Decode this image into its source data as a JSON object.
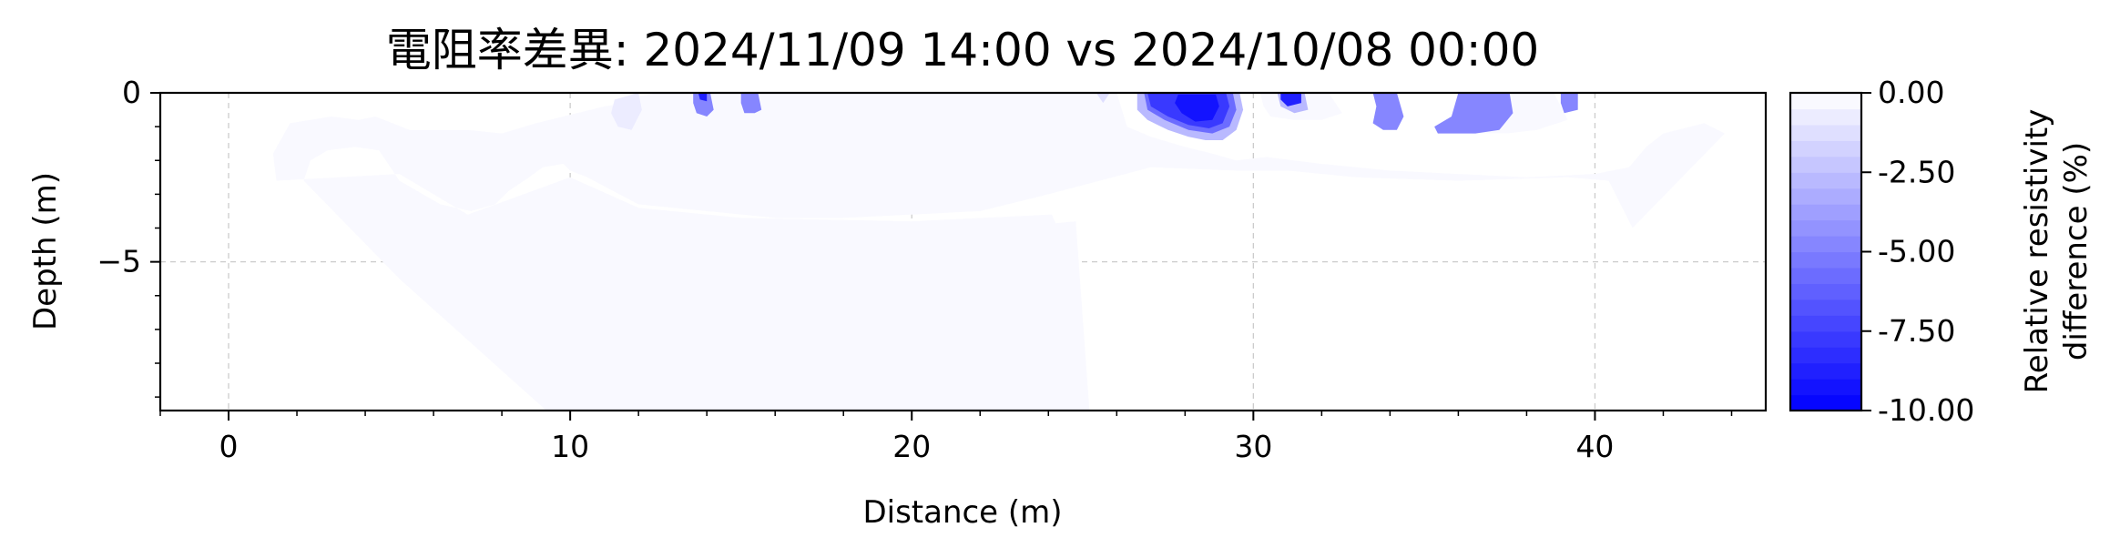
{
  "chart_data": {
    "type": "contour",
    "title": "電阻率差異: 2024/11/09 14:00 vs 2024/10/08 00:00",
    "xlabel": "Distance (m)",
    "ylabel": "Depth (m)",
    "xlim": [
      -2,
      45
    ],
    "ylim": [
      -9.4,
      0
    ],
    "xticks": [
      0,
      10,
      20,
      30,
      40
    ],
    "xtick_labels": [
      "0",
      "10",
      "20",
      "30",
      "40"
    ],
    "yticks": [
      0,
      -5
    ],
    "ytick_labels": [
      "0",
      "−5"
    ],
    "grid": true,
    "colorbar": {
      "label_line1": "Relative resistivity",
      "label_line2": "difference (%)",
      "range": [
        -10,
        0
      ],
      "ticks": [
        0,
        -2.5,
        -5,
        -7.5,
        -10
      ],
      "tick_labels": [
        "0.00",
        "-2.50",
        "-5.00",
        "-7.50",
        "-10.00"
      ],
      "levels": 20,
      "color_min": "#0000ff",
      "color_max": "#ffffff"
    },
    "regions": [
      {
        "level": -0.5,
        "points": [
          [
            1.4,
            -2.6
          ],
          [
            1.3,
            -1.8
          ],
          [
            1.8,
            -0.9
          ],
          [
            3,
            -0.7
          ],
          [
            3.8,
            -0.8
          ],
          [
            4.3,
            -0.7
          ],
          [
            5.3,
            -1.1
          ],
          [
            7,
            -1.1
          ],
          [
            8,
            -1.2
          ],
          [
            9,
            -0.9
          ],
          [
            10.2,
            -0.6
          ],
          [
            11,
            -0.4
          ],
          [
            11.7,
            -0.3
          ],
          [
            12,
            -0.1
          ],
          [
            12.6,
            0
          ],
          [
            20,
            0
          ],
          [
            26,
            0
          ],
          [
            26.3,
            -1
          ],
          [
            27,
            -1.3
          ],
          [
            28,
            -1.6
          ],
          [
            28.8,
            -1.8
          ],
          [
            29.5,
            -2
          ],
          [
            30.4,
            -1.9
          ],
          [
            32,
            -2.1
          ],
          [
            34,
            -2.3
          ],
          [
            36,
            -2.4
          ],
          [
            38,
            -2.5
          ],
          [
            40,
            -2.4
          ],
          [
            41,
            -2.2
          ],
          [
            41.5,
            -1.6
          ],
          [
            42,
            -1.2
          ],
          [
            43.2,
            -0.9
          ],
          [
            43.8,
            -1.2
          ],
          [
            41.1,
            -4.0
          ],
          [
            40.6,
            -3.0
          ],
          [
            40.4,
            -2.6
          ],
          [
            39.2,
            -2.5
          ],
          [
            36,
            -2.6
          ],
          [
            33,
            -2.5
          ],
          [
            31,
            -2.3
          ],
          [
            29.5,
            -2.3
          ],
          [
            27,
            -2.2
          ],
          [
            24,
            -3.0
          ],
          [
            22,
            -3.5
          ],
          [
            20,
            -3.6
          ],
          [
            18,
            -3.7
          ],
          [
            16,
            -3.7
          ],
          [
            14,
            -3.5
          ],
          [
            12,
            -3.3
          ],
          [
            10.5,
            -2.5
          ],
          [
            10,
            -2.3
          ],
          [
            9.8,
            -2.1
          ],
          [
            9.2,
            -2.2
          ],
          [
            8.8,
            -2.5
          ],
          [
            8.2,
            -2.9
          ],
          [
            7.8,
            -3.3
          ],
          [
            7.1,
            -3.5
          ],
          [
            6.2,
            -3.3
          ],
          [
            5,
            -2.6
          ],
          [
            4.4,
            -1.7
          ],
          [
            3.7,
            -1.6
          ],
          [
            2.9,
            -1.7
          ],
          [
            2.4,
            -2.0
          ],
          [
            2.2,
            -2.6
          ],
          [
            5,
            -5.5
          ],
          [
            9.3,
            -9.4
          ],
          [
            25.2,
            -9.4
          ],
          [
            24.7,
            -7.5
          ],
          [
            24.4,
            -5.8
          ],
          [
            24.5,
            -4.5
          ],
          [
            24.1,
            -3.6
          ],
          [
            20,
            -3.8
          ],
          [
            15,
            -3.7
          ],
          [
            12,
            -3.4
          ],
          [
            10,
            -2.5
          ],
          [
            7,
            -3.6
          ],
          [
            5,
            -2.4
          ]
        ]
      },
      {
        "level": -0.5,
        "points": [
          [
            23.8,
            -3.9
          ],
          [
            24.8,
            -3.8
          ],
          [
            25.2,
            -9.4
          ],
          [
            24.6,
            -9.4
          ],
          [
            24.2,
            -7
          ],
          [
            23.9,
            -5.2
          ]
        ]
      },
      {
        "level": -0.5,
        "points": [
          [
            12.6,
            -0.1
          ],
          [
            13.7,
            0
          ],
          [
            14.3,
            -0.3
          ],
          [
            14.7,
            -0.8
          ],
          [
            13.9,
            -0.9
          ],
          [
            13.3,
            -0.7
          ],
          [
            12.8,
            -0.6
          ],
          [
            12.6,
            -0.3
          ]
        ]
      },
      {
        "level": -1,
        "points": [
          [
            11.3,
            -0.2
          ],
          [
            12,
            0
          ],
          [
            12.1,
            -0.5
          ],
          [
            11.8,
            -1.1
          ],
          [
            11.4,
            -1.0
          ],
          [
            11.2,
            -0.6
          ]
        ]
      },
      {
        "level": -0.5,
        "points": [
          [
            18.4,
            0
          ],
          [
            18.7,
            0
          ],
          [
            18.6,
            -0.25
          ],
          [
            18.4,
            -0.25
          ]
        ]
      },
      {
        "level": -0.5,
        "points": [
          [
            22.9,
            0
          ],
          [
            23.2,
            0
          ],
          [
            23.2,
            -0.3
          ],
          [
            22.9,
            -0.3
          ]
        ]
      },
      {
        "level": -1.5,
        "points": [
          [
            25.4,
            0
          ],
          [
            25.8,
            0
          ],
          [
            25.6,
            -0.3
          ]
        ]
      },
      {
        "level": -0.5,
        "points": [
          [
            30.2,
            0
          ],
          [
            32.2,
            0
          ],
          [
            32.6,
            -0.6
          ],
          [
            32,
            -0.8
          ],
          [
            31.2,
            -0.8
          ],
          [
            30.5,
            -0.7
          ],
          [
            30.3,
            -0.4
          ]
        ]
      },
      {
        "level": -0.5,
        "points": [
          [
            36.8,
            0
          ],
          [
            38.8,
            0
          ],
          [
            39.2,
            -0.8
          ],
          [
            38.3,
            -1.1
          ],
          [
            37.4,
            -1.2
          ],
          [
            36.4,
            -1.2
          ],
          [
            35.9,
            -1.0
          ],
          [
            36.3,
            -0.5
          ]
        ]
      },
      {
        "level": -5,
        "points": [
          [
            13.6,
            0
          ],
          [
            14.1,
            0
          ],
          [
            14.2,
            -0.5
          ],
          [
            14.0,
            -0.7
          ],
          [
            13.7,
            -0.6
          ],
          [
            13.6,
            -0.3
          ]
        ]
      },
      {
        "level": -9,
        "points": [
          [
            13.75,
            0
          ],
          [
            14.0,
            0
          ],
          [
            14.0,
            -0.25
          ],
          [
            13.8,
            -0.2
          ]
        ]
      },
      {
        "level": -5,
        "points": [
          [
            15,
            0
          ],
          [
            15.5,
            0
          ],
          [
            15.6,
            -0.5
          ],
          [
            15.4,
            -0.6
          ],
          [
            15.1,
            -0.6
          ],
          [
            15,
            -0.3
          ]
        ]
      },
      {
        "level": -3,
        "points": [
          [
            26.6,
            0
          ],
          [
            29.6,
            0
          ],
          [
            29.7,
            -0.5
          ],
          [
            29.5,
            -1.1
          ],
          [
            29.1,
            -1.4
          ],
          [
            28.6,
            -1.4
          ],
          [
            28.1,
            -1.3
          ],
          [
            27.5,
            -1.1
          ],
          [
            26.9,
            -0.8
          ],
          [
            26.6,
            -0.5
          ]
        ]
      },
      {
        "level": -6,
        "points": [
          [
            26.8,
            0
          ],
          [
            29.4,
            0
          ],
          [
            29.5,
            -0.5
          ],
          [
            29.3,
            -1.0
          ],
          [
            28.8,
            -1.2
          ],
          [
            28.1,
            -1.1
          ],
          [
            27.4,
            -0.8
          ],
          [
            26.9,
            -0.5
          ]
        ]
      },
      {
        "level": -8,
        "points": [
          [
            26.9,
            0
          ],
          [
            29.2,
            0
          ],
          [
            29.3,
            -0.4
          ],
          [
            29.1,
            -0.9
          ],
          [
            28.7,
            -1.05
          ],
          [
            28.1,
            -0.95
          ],
          [
            27.5,
            -0.7
          ],
          [
            27.0,
            -0.4
          ]
        ]
      },
      {
        "level": -9.5,
        "points": [
          [
            27.8,
            -0.05
          ],
          [
            28.9,
            -0.05
          ],
          [
            29.0,
            -0.4
          ],
          [
            28.8,
            -0.8
          ],
          [
            28.3,
            -0.85
          ],
          [
            27.9,
            -0.6
          ],
          [
            27.7,
            -0.3
          ]
        ]
      },
      {
        "level": -3,
        "points": [
          [
            30.7,
            0
          ],
          [
            31.5,
            0
          ],
          [
            31.6,
            -0.5
          ],
          [
            31.2,
            -0.6
          ],
          [
            30.8,
            -0.4
          ]
        ]
      },
      {
        "level": -9,
        "points": [
          [
            30.8,
            0
          ],
          [
            31.4,
            0
          ],
          [
            31.4,
            -0.3
          ],
          [
            31.0,
            -0.4
          ],
          [
            30.8,
            -0.2
          ]
        ]
      },
      {
        "level": -5,
        "points": [
          [
            33.5,
            0
          ],
          [
            34.2,
            0
          ],
          [
            34.4,
            -0.7
          ],
          [
            34.2,
            -1.1
          ],
          [
            33.8,
            -1.1
          ],
          [
            33.5,
            -0.9
          ],
          [
            33.6,
            -0.4
          ]
        ]
      },
      {
        "level": -5,
        "points": [
          [
            36,
            0
          ],
          [
            37.5,
            0
          ],
          [
            37.6,
            -0.6
          ],
          [
            37.2,
            -1.1
          ],
          [
            36.5,
            -1.2
          ],
          [
            35.4,
            -1.2
          ],
          [
            35.3,
            -1.0
          ],
          [
            35.8,
            -0.7
          ]
        ]
      },
      {
        "level": -5,
        "points": [
          [
            39,
            0
          ],
          [
            39.5,
            0
          ],
          [
            39.5,
            -0.5
          ],
          [
            39.1,
            -0.6
          ],
          [
            39,
            -0.3
          ]
        ]
      }
    ]
  }
}
